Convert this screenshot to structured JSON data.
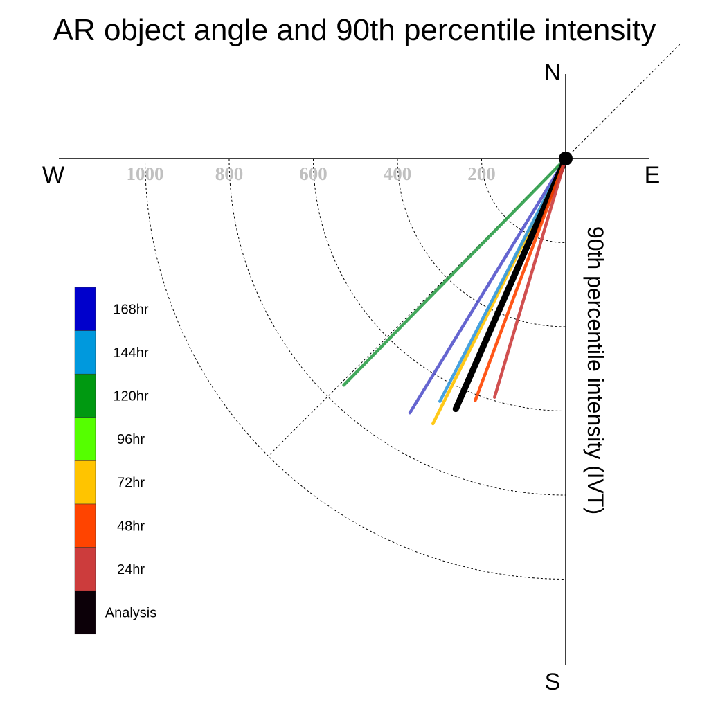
{
  "chart_data": {
    "type": "polar-vector",
    "title": "AR object angle and 90th percentile intensity",
    "compass": {
      "north": "N",
      "south": "S",
      "east": "E",
      "west": "W"
    },
    "radial_axis_label": "90th percentile intensity (IVT)",
    "radial_ticks": [
      200,
      400,
      600,
      800,
      1000
    ],
    "radial_range": [
      0,
      1200
    ],
    "angle_reference": "degrees clockwise from North",
    "grid": true,
    "diagonal_reference_line_deg": 45,
    "legend": {
      "placement": "left",
      "entries": [
        {
          "label": "168hr",
          "color": "#0000cc"
        },
        {
          "label": "144hr",
          "color": "#0099dd"
        },
        {
          "label": "120hr",
          "color": "#009911"
        },
        {
          "label": "96hr",
          "color": "#55ff00"
        },
        {
          "label": "72hr",
          "color": "#ffc400"
        },
        {
          "label": "48hr",
          "color": "#ff4400"
        },
        {
          "label": "24hr",
          "color": "#cc3c3c"
        },
        {
          "label": "Analysis",
          "color": "#0c0008"
        }
      ]
    },
    "series": [
      {
        "name": "120hr",
        "color": "#2e9f4a",
        "angle_deg": 224.4,
        "intensity": 754
      },
      {
        "name": "168hr",
        "color": "#5555cc",
        "angle_deg": 211.5,
        "intensity": 709
      },
      {
        "name": "72hr",
        "color": "#ffc400",
        "angle_deg": 206.6,
        "intensity": 705
      },
      {
        "name": "144hr",
        "color": "#3399dd",
        "angle_deg": 207.4,
        "intensity": 650
      },
      {
        "name": "Analysis",
        "color": "#000000",
        "angle_deg": 203.7,
        "intensity": 650
      },
      {
        "name": "48hr",
        "color": "#ff4400",
        "angle_deg": 200.5,
        "intensity": 614
      },
      {
        "name": "24hr",
        "color": "#cc3c3c",
        "angle_deg": 196.6,
        "intensity": 592
      }
    ]
  }
}
